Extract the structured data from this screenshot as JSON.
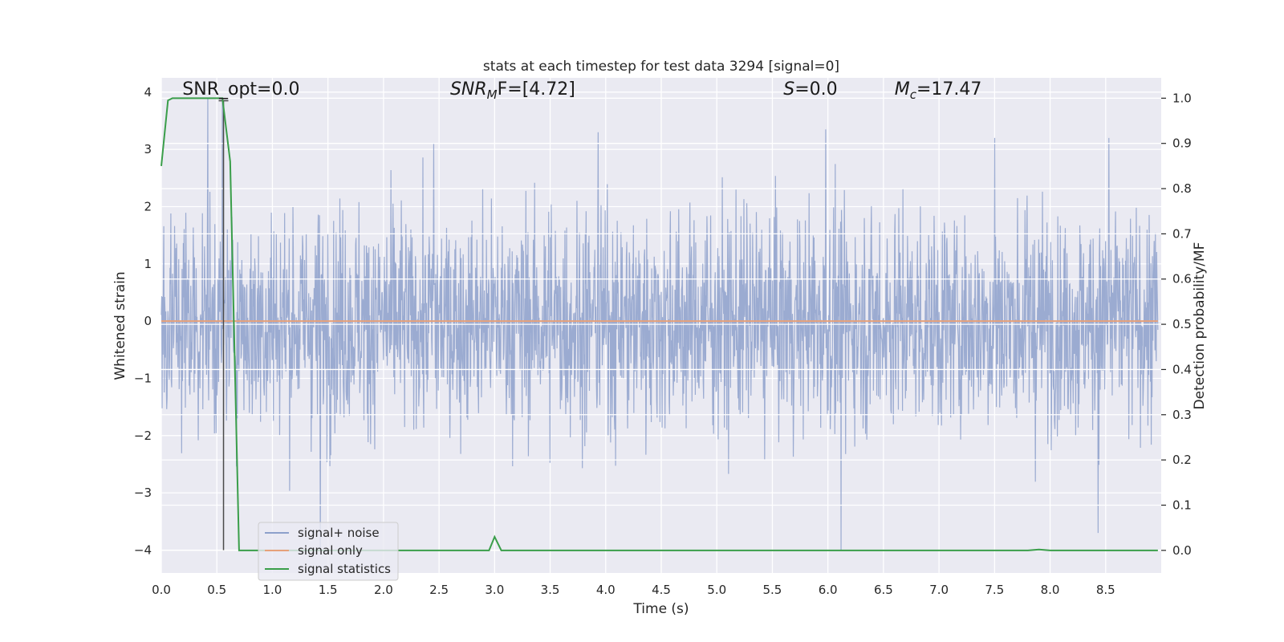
{
  "chart_data": {
    "type": "line",
    "title": "stats at each timestep for test data 3294 [signal=0]",
    "xlabel": "Time (s)",
    "ylabel": "Whitened strain",
    "y2label": "Detection probability/MF",
    "xlim": [
      0.0,
      9.0
    ],
    "ylim": [
      -4.4,
      4.25
    ],
    "y2lim": [
      -0.05,
      1.045
    ],
    "xticks": [
      0.0,
      0.5,
      1.0,
      1.5,
      2.0,
      2.5,
      3.0,
      3.5,
      4.0,
      4.5,
      5.0,
      5.5,
      6.0,
      6.5,
      7.0,
      7.5,
      8.0,
      8.5
    ],
    "xtick_labels": [
      "0.0",
      "0.5",
      "1.0",
      "1.5",
      "2.0",
      "2.5",
      "3.0",
      "3.5",
      "4.0",
      "4.5",
      "5.0",
      "5.5",
      "6.0",
      "6.5",
      "7.0",
      "7.5",
      "8.0",
      "8.5"
    ],
    "yticks": [
      4,
      3,
      2,
      1,
      0,
      -1,
      -2,
      -3,
      -4
    ],
    "ytick_labels": [
      "4",
      "3",
      "2",
      "1",
      "0",
      "−1",
      "−2",
      "−3",
      "−4"
    ],
    "y2ticks": [
      1.0,
      0.9,
      0.8,
      0.7,
      0.6,
      0.5,
      0.4,
      0.3,
      0.2,
      0.1,
      0.0
    ],
    "y2tick_labels": [
      "1.0",
      "0.9",
      "0.8",
      "0.7",
      "0.6",
      "0.5",
      "0.4",
      "0.3",
      "0.2",
      "0.1",
      "0.0"
    ],
    "grid": true,
    "legend_position": "lower-left",
    "series": [
      {
        "name": "signal+ noise",
        "color": "#8da0cb",
        "kind": "noise",
        "amplitude_typical": 1.5,
        "amplitude_max": 4.0,
        "peak_points": [
          [
            0.42,
            3.9
          ],
          [
            0.55,
            3.85
          ],
          [
            1.43,
            -4.0
          ],
          [
            2.45,
            3.1
          ],
          [
            3.93,
            3.3
          ],
          [
            6.12,
            -4.0
          ],
          [
            5.98,
            3.35
          ],
          [
            7.5,
            3.2
          ],
          [
            8.43,
            -3.7
          ],
          [
            8.53,
            3.2
          ]
        ]
      },
      {
        "name": "signal only",
        "color": "#e6a17a",
        "kind": "flat",
        "value": 0.0
      },
      {
        "name": "signal statistics",
        "color": "#3a9e4a",
        "axis": "right",
        "x": [
          0.0,
          0.06,
          0.1,
          0.2,
          0.3,
          0.4,
          0.5,
          0.55,
          0.6,
          0.62,
          0.7,
          1.0,
          2.0,
          2.95,
          3.0,
          3.06,
          3.15,
          4.0,
          5.0,
          6.0,
          7.0,
          7.8,
          7.9,
          8.0,
          8.97
        ],
        "y": [
          0.85,
          0.995,
          1.0,
          1.0,
          1.0,
          1.0,
          1.0,
          1.0,
          0.9,
          0.86,
          0.0,
          0.0,
          0.0,
          0.0,
          0.03,
          0.0,
          0.0,
          0.0,
          0.0,
          0.0,
          0.0,
          0.0,
          0.002,
          0.0,
          0.0
        ]
      }
    ],
    "vline": {
      "x": 0.56,
      "y_from": -4.0,
      "y_to": 3.85,
      "color": "#4a4a4a"
    },
    "annotations": [
      {
        "text": "SNR_opt=0.0",
        "x": 0.19,
        "y": 4.0
      },
      {
        "text_main": "SNR",
        "text_sub": "M",
        "text_tail": "F=[4.72]",
        "x": 2.6,
        "y": 4.0
      },
      {
        "text_main": "S",
        "text_tail": "=0.0",
        "x": 5.6,
        "y": 4.0
      },
      {
        "text_main": "M",
        "text_sub": "c",
        "text_tail": "=17.47",
        "x": 6.6,
        "y": 4.0
      }
    ]
  }
}
